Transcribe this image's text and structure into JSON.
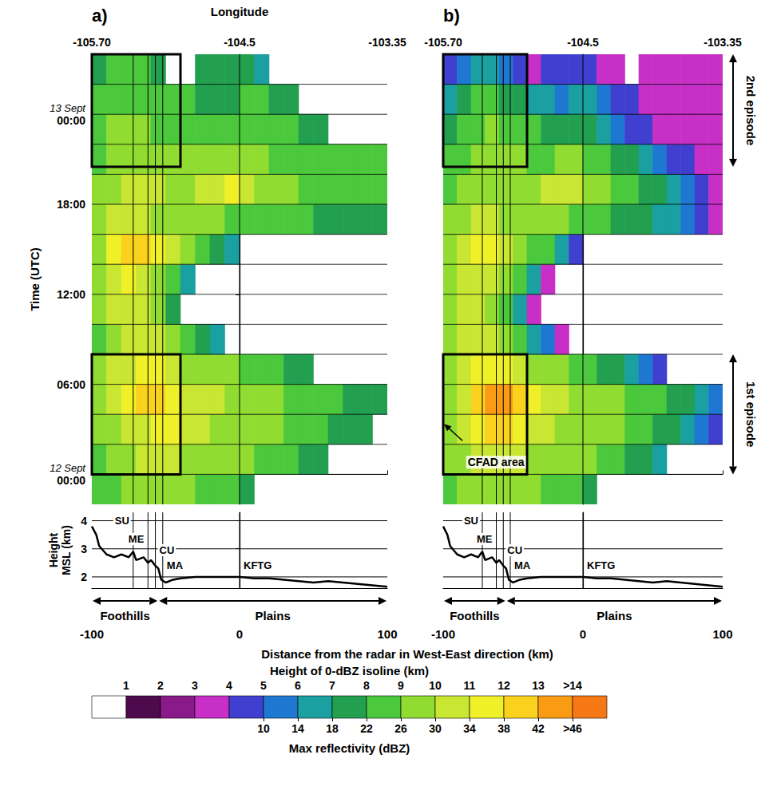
{
  "chart_data": {
    "type": "heatmap",
    "top_axis": {
      "title": "Longitude",
      "ticks": [
        {
          "value": -100,
          "label": "-105.70"
        },
        {
          "value": 0,
          "label": "-104.5"
        },
        {
          "value": 100,
          "label": "-103.35"
        }
      ]
    },
    "x_label": "Distance from the radar in West-East direction (km)",
    "xlim": [
      -100,
      100
    ],
    "xticks": [
      -100,
      0,
      100
    ],
    "y_label": "Time (UTC)",
    "ylim": [
      -2,
      28
    ],
    "yticks": [
      {
        "value": 0,
        "label": "00:00"
      },
      {
        "value": 6,
        "label": "06:00"
      },
      {
        "value": 12,
        "label": "12:00"
      },
      {
        "value": 18,
        "label": "18:00"
      },
      {
        "value": 24,
        "label": "00:00"
      }
    ],
    "date_labels": [
      {
        "value": 0,
        "label": "12 Sept"
      },
      {
        "value": 24,
        "label": "13 Sept"
      }
    ],
    "x_bins": [
      -100,
      -90,
      -80,
      -70,
      -60,
      -50,
      -40,
      -30,
      -20,
      -10,
      0,
      10,
      20,
      30,
      40,
      50,
      60,
      70,
      80,
      90,
      100
    ],
    "time_bins": [
      -2,
      0,
      2,
      4,
      6,
      8,
      10,
      12,
      14,
      16,
      18,
      20,
      22,
      24,
      26,
      28
    ],
    "panels": [
      {
        "label": "a)",
        "scale": "dbz",
        "cells": [
          [
            22,
            24,
            26,
            26,
            26,
            26,
            26,
            24,
            22,
            22,
            18,
            null,
            null,
            null,
            null,
            null,
            null,
            null,
            null,
            null
          ],
          [
            24,
            26,
            28,
            30,
            30,
            30,
            28,
            28,
            26,
            26,
            26,
            24,
            22,
            22,
            18,
            18,
            null,
            null,
            null,
            null
          ],
          [
            26,
            28,
            30,
            32,
            34,
            34,
            30,
            30,
            28,
            28,
            26,
            26,
            26,
            24,
            22,
            22,
            20,
            18,
            18,
            null
          ],
          [
            26,
            30,
            34,
            38,
            40,
            36,
            32,
            30,
            30,
            28,
            28,
            26,
            26,
            24,
            22,
            22,
            22,
            20,
            18,
            18
          ],
          [
            26,
            30,
            32,
            36,
            34,
            30,
            28,
            28,
            26,
            26,
            24,
            22,
            22,
            18,
            18,
            null,
            null,
            null,
            null,
            null
          ],
          [
            24,
            28,
            30,
            32,
            30,
            26,
            22,
            18,
            14,
            null,
            null,
            null,
            null,
            null,
            null,
            null,
            null,
            null,
            null,
            null
          ],
          [
            26,
            30,
            32,
            30,
            26,
            18,
            null,
            null,
            null,
            null,
            null,
            null,
            null,
            null,
            null,
            null,
            null,
            null,
            null,
            null
          ],
          [
            28,
            32,
            34,
            32,
            28,
            22,
            14,
            null,
            null,
            null,
            null,
            null,
            null,
            null,
            null,
            null,
            null,
            null,
            null,
            null
          ],
          [
            28,
            34,
            38,
            40,
            34,
            30,
            26,
            22,
            18,
            14,
            null,
            null,
            null,
            null,
            null,
            null,
            null,
            null,
            null,
            null
          ],
          [
            26,
            30,
            32,
            30,
            28,
            26,
            26,
            26,
            26,
            24,
            24,
            22,
            22,
            22,
            22,
            20,
            20,
            18,
            18,
            18
          ],
          [
            26,
            28,
            30,
            30,
            30,
            28,
            28,
            30,
            32,
            34,
            30,
            28,
            26,
            26,
            24,
            24,
            22,
            22,
            22,
            22
          ],
          [
            24,
            26,
            26,
            28,
            26,
            26,
            26,
            26,
            28,
            28,
            26,
            26,
            24,
            22,
            22,
            22,
            22,
            22,
            22,
            22
          ],
          [
            24,
            26,
            26,
            26,
            24,
            24,
            24,
            24,
            22,
            22,
            24,
            22,
            22,
            22,
            18,
            18,
            null,
            null,
            null,
            null
          ],
          [
            22,
            22,
            24,
            24,
            22,
            22,
            22,
            18,
            18,
            18,
            22,
            22,
            18,
            18,
            null,
            null,
            null,
            null,
            null,
            null
          ],
          [
            18,
            22,
            22,
            22,
            18,
            null,
            null,
            18,
            18,
            18,
            18,
            14,
            null,
            null,
            null,
            null,
            null,
            null,
            null,
            null
          ]
        ]
      },
      {
        "label": "b)",
        "scale": "height",
        "cells": [
          [
            8,
            9,
            9,
            9,
            9,
            9,
            9,
            8,
            8,
            8,
            7,
            null,
            null,
            null,
            null,
            null,
            null,
            null,
            null,
            null
          ],
          [
            9,
            9,
            10,
            10,
            10,
            10,
            9,
            9,
            9,
            9,
            9,
            8,
            8,
            7,
            7,
            6,
            null,
            null,
            null,
            null
          ],
          [
            9,
            10,
            11,
            12,
            12,
            11,
            10,
            10,
            9,
            9,
            9,
            9,
            9,
            8,
            8,
            7,
            7,
            6,
            5,
            4
          ],
          [
            9,
            10,
            12,
            13,
            13,
            12,
            11,
            10,
            10,
            9,
            9,
            9,
            9,
            8,
            8,
            8,
            7,
            7,
            6,
            5
          ],
          [
            9,
            10,
            11,
            11,
            11,
            10,
            9,
            9,
            9,
            8,
            8,
            7,
            7,
            6,
            5,
            4,
            null,
            null,
            null,
            null
          ],
          [
            9,
            10,
            10,
            10,
            9,
            8,
            6,
            5,
            3,
            null,
            null,
            null,
            null,
            null,
            null,
            null,
            null,
            null,
            null,
            null
          ],
          [
            9,
            10,
            10,
            9,
            8,
            6,
            3,
            null,
            null,
            null,
            null,
            null,
            null,
            null,
            null,
            null,
            null,
            null,
            null,
            null
          ],
          [
            9,
            10,
            10,
            10,
            9,
            8,
            6,
            3,
            null,
            null,
            null,
            null,
            null,
            null,
            null,
            null,
            null,
            null,
            null,
            null
          ],
          [
            9,
            10,
            11,
            11,
            10,
            9,
            8,
            8,
            6,
            4,
            null,
            null,
            null,
            null,
            null,
            null,
            null,
            null,
            null,
            null
          ],
          [
            9,
            9,
            10,
            10,
            9,
            9,
            9,
            9,
            9,
            8,
            8,
            8,
            7,
            7,
            7,
            6,
            6,
            5,
            4,
            3
          ],
          [
            8,
            9,
            9,
            9,
            9,
            9,
            9,
            10,
            10,
            10,
            9,
            9,
            8,
            8,
            7,
            7,
            6,
            5,
            4,
            3
          ],
          [
            8,
            8,
            9,
            9,
            9,
            9,
            8,
            8,
            9,
            9,
            8,
            8,
            7,
            7,
            6,
            5,
            4,
            4,
            3,
            3
          ],
          [
            7,
            8,
            8,
            9,
            8,
            8,
            8,
            7,
            7,
            7,
            7,
            6,
            5,
            4,
            4,
            3,
            3,
            3,
            3,
            3
          ],
          [
            6,
            7,
            8,
            8,
            7,
            7,
            6,
            6,
            5,
            6,
            6,
            5,
            4,
            4,
            3,
            3,
            3,
            3,
            3,
            3
          ],
          [
            4,
            5,
            6,
            6,
            5,
            4,
            3,
            4,
            4,
            4,
            4,
            3,
            3,
            null,
            3,
            3,
            3,
            3,
            3,
            3
          ]
        ]
      }
    ],
    "episodes": [
      {
        "label": "1st episode",
        "start": 0,
        "end": 8
      },
      {
        "label": "2nd episode",
        "start": 20.5,
        "end": 28
      }
    ],
    "cfad_area": {
      "label": "CFAD area",
      "xlim": [
        -100,
        -40
      ]
    },
    "stations": [
      {
        "name": "SU",
        "distance": -72
      },
      {
        "name": "ME",
        "distance": -62
      },
      {
        "name": "CU",
        "distance": -57
      },
      {
        "name": "MA",
        "distance": -52
      },
      {
        "name": "KFTG",
        "distance": 0
      }
    ],
    "terrain": {
      "y_label": "Height MSL (km)",
      "ylim": [
        1.6,
        4.3
      ],
      "yticks": [
        2,
        3,
        4
      ],
      "x": [
        -100,
        -97,
        -95,
        -90,
        -85,
        -80,
        -75,
        -72,
        -70,
        -65,
        -62,
        -60,
        -57,
        -55,
        -53,
        -50,
        -45,
        -40,
        -30,
        -20,
        -10,
        0,
        10,
        20,
        30,
        40,
        50,
        60,
        70,
        80,
        90,
        100
      ],
      "values": [
        3.8,
        3.5,
        3.1,
        2.8,
        2.7,
        2.8,
        2.7,
        2.9,
        2.6,
        2.7,
        2.5,
        2.6,
        2.4,
        2.3,
        1.9,
        1.8,
        1.9,
        1.95,
        2.0,
        2.0,
        2.0,
        2.0,
        1.95,
        1.95,
        1.9,
        1.85,
        1.8,
        1.85,
        1.8,
        1.75,
        1.7,
        1.65
      ]
    },
    "regions": [
      {
        "label": "Foothills",
        "start": -100,
        "end": -55
      },
      {
        "label": "Plains",
        "start": -55,
        "end": 100
      }
    ],
    "colorbar": {
      "colors": [
        "#ffffff",
        "#4d0a4d",
        "#8a1a8a",
        "#c72fc7",
        "#4040d0",
        "#1e78d2",
        "#1aa0a0",
        "#22a050",
        "#4cc83c",
        "#90dc30",
        "#c8e632",
        "#f0f028",
        "#fad21e",
        "#fa9b14",
        "#f57814"
      ],
      "height": {
        "title": "Height of 0-dBZ isoline (km)",
        "ticks": [
          1,
          2,
          3,
          4,
          5,
          6,
          7,
          8,
          9,
          10,
          11,
          12,
          13,
          {
            "value": 14,
            "label": ">14"
          }
        ]
      },
      "dbz": {
        "title": "Max reflectivity (dBZ)",
        "ticks": [
          10,
          14,
          18,
          22,
          26,
          30,
          34,
          38,
          42,
          {
            "value": 46,
            "label": ">46"
          }
        ]
      }
    }
  }
}
